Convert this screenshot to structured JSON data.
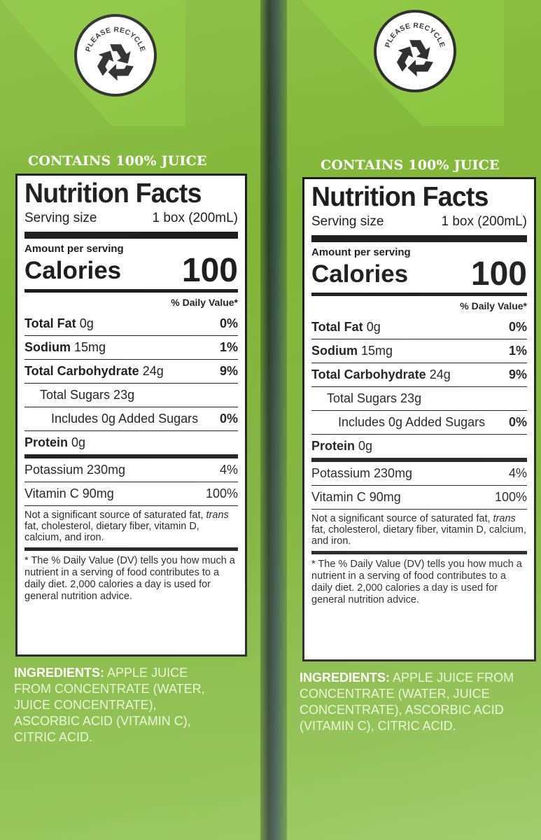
{
  "recycle": {
    "text": "PLEASE RECYCLE",
    "icon": "recycle-icon"
  },
  "banner": "CONTAINS 100% JUICE",
  "nutrition": {
    "title": "Nutrition Facts",
    "serving_label": "Serving size",
    "serving_value": "1 box (200mL)",
    "amount_per_serving": "Amount per serving",
    "calories_label": "Calories",
    "calories_value": "100",
    "dv_header": "% Daily Value*",
    "rows": [
      {
        "name": "Total Fat",
        "amount": "0g",
        "dv": "0%"
      },
      {
        "name": "Sodium",
        "amount": "15mg",
        "dv": "1%"
      },
      {
        "name": "Total Carbohydrate",
        "amount": "24g",
        "dv": "9%"
      },
      {
        "name": "Total Sugars 23g",
        "amount": "",
        "dv": ""
      },
      {
        "name": "Includes 0g Added Sugars",
        "amount": "",
        "dv": "0%"
      },
      {
        "name": "Protein",
        "amount": "0g",
        "dv": ""
      },
      {
        "name": "Potassium 230mg",
        "amount": "",
        "dv": "4%"
      },
      {
        "name": "Vitamin C 90mg",
        "amount": "",
        "dv": "100%"
      }
    ],
    "not_significant_1": "Not a significant source of saturated fat,",
    "not_significant_trans": "trans",
    "not_significant_2": "fat, cholesterol, dietary fiber, vitamin D, calcium, and iron.",
    "footnote": "* The % Daily Value (DV) tells you how much a nutrient in a serving of food contributes to a daily diet. 2,000 calories a day is used for general nutrition advice."
  },
  "ingredients": {
    "label": "INGREDIENTS:",
    "text": "APPLE JUICE FROM CONCENTRATE (WATER, JUICE CONCENTRATE), ASCORBIC ACID (VITAMIN C), CITRIC ACID."
  },
  "colors": {
    "carton_green": "#7fb43a",
    "label_ink": "#1d1d1d"
  }
}
